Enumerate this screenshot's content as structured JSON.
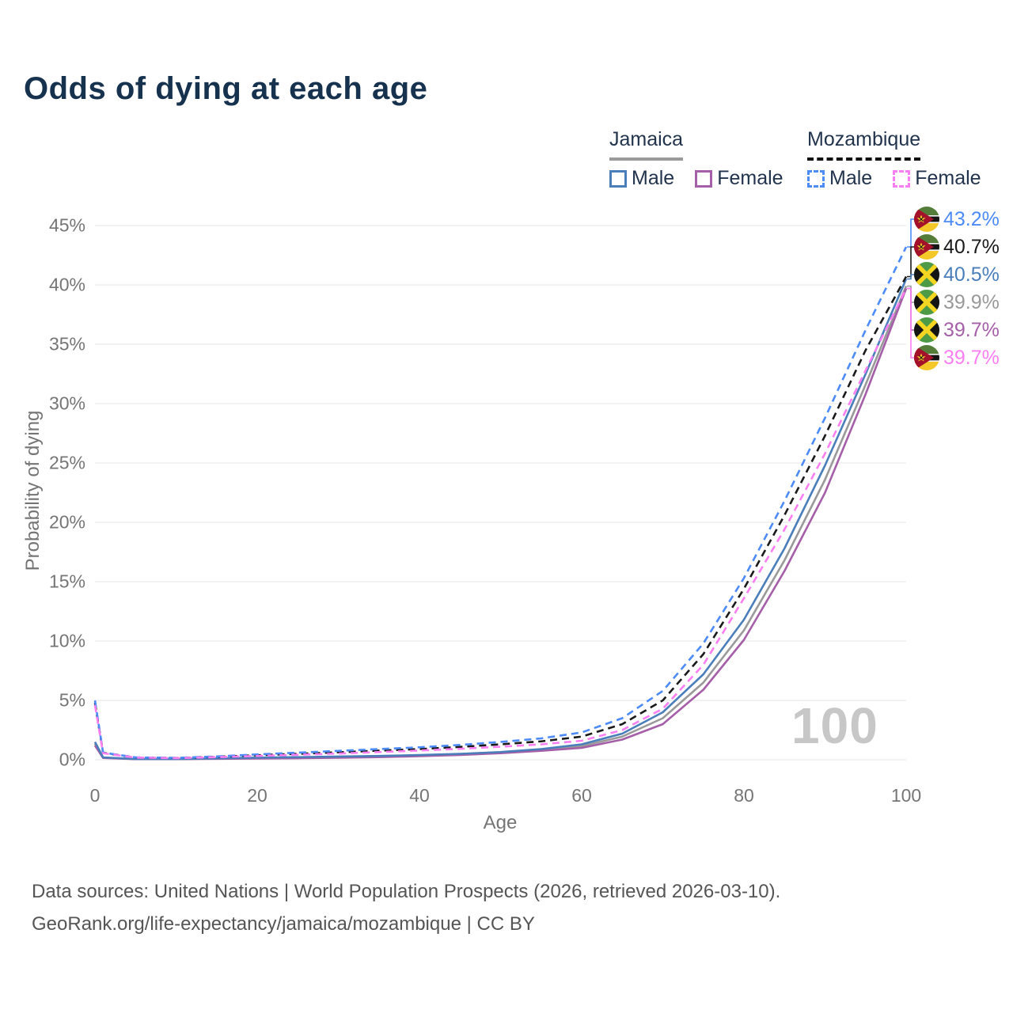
{
  "header": {
    "title": "Odds of dying at each age"
  },
  "legend": {
    "jamaica": {
      "title": "Jamaica",
      "male_label": "Male",
      "female_label": "Female"
    },
    "mozambique": {
      "title": "Mozambique",
      "male_label": "Male",
      "female_label": "Female"
    }
  },
  "watermark": "100",
  "footer": {
    "line1": "Data sources: United Nations | World Population Prospects (2026, retrieved 2026-03-10).",
    "line2": "GeoRank.org/life-expectancy/jamaica/mozambique | CC BY"
  },
  "chart_data": {
    "type": "line",
    "title": "Odds of dying at each age",
    "xlabel": "Age",
    "ylabel": "Probability of dying",
    "xlim": [
      0,
      100
    ],
    "ylim_percent": [
      0,
      45
    ],
    "x_ticks": [
      0,
      20,
      40,
      60,
      80,
      100
    ],
    "y_ticks_percent": [
      0,
      5,
      10,
      15,
      20,
      25,
      30,
      35,
      40,
      45
    ],
    "y_tick_labels": [
      "0%",
      "5%",
      "10%",
      "15%",
      "20%",
      "25%",
      "30%",
      "35%",
      "40%",
      "45%"
    ],
    "grid": "horizontal",
    "legend_position": "top-right",
    "ages": [
      0,
      1,
      5,
      10,
      15,
      20,
      25,
      30,
      35,
      40,
      45,
      50,
      55,
      60,
      65,
      70,
      75,
      80,
      85,
      90,
      95,
      100
    ],
    "series": [
      {
        "id": "jam_combined",
        "name": "Jamaica (both sexes)",
        "country": "Jamaica",
        "sex": "combined",
        "color": "#999999",
        "dash": "solid",
        "values": [
          1.35,
          0.18,
          0.055,
          0.055,
          0.1,
          0.14,
          0.18,
          0.22,
          0.27,
          0.35,
          0.45,
          0.6,
          0.82,
          1.15,
          1.95,
          3.5,
          6.5,
          10.9,
          16.8,
          23.6,
          31.6,
          39.9
        ]
      },
      {
        "id": "jam_female",
        "name": "Jamaica Female",
        "country": "Jamaica",
        "sex": "female",
        "color": "#a55fa8",
        "dash": "solid",
        "values": [
          1.2,
          0.15,
          0.05,
          0.05,
          0.08,
          0.1,
          0.13,
          0.17,
          0.22,
          0.3,
          0.4,
          0.55,
          0.75,
          1.0,
          1.7,
          3.0,
          5.9,
          10.1,
          15.9,
          22.5,
          30.8,
          39.7
        ]
      },
      {
        "id": "jam_male",
        "name": "Jamaica Male",
        "country": "Jamaica",
        "sex": "male",
        "color": "#4a7ebb",
        "dash": "solid",
        "values": [
          1.5,
          0.2,
          0.06,
          0.06,
          0.12,
          0.18,
          0.22,
          0.27,
          0.32,
          0.4,
          0.5,
          0.65,
          0.9,
          1.3,
          2.2,
          4.0,
          7.2,
          11.8,
          17.8,
          24.8,
          32.5,
          40.5
        ]
      },
      {
        "id": "moz_combined",
        "name": "Mozambique (both sexes)",
        "country": "Mozambique",
        "sex": "combined",
        "color": "#1a1a1a",
        "dash": "dashed",
        "values": [
          4.8,
          0.58,
          0.19,
          0.15,
          0.25,
          0.38,
          0.5,
          0.63,
          0.77,
          0.9,
          1.08,
          1.3,
          1.55,
          1.95,
          3.0,
          5.0,
          8.9,
          14.4,
          20.6,
          27.3,
          34.5,
          40.7
        ]
      },
      {
        "id": "moz_male",
        "name": "Mozambique Male",
        "country": "Mozambique",
        "sex": "male",
        "color": "#4d8bf8",
        "dash": "dashed",
        "values": [
          5.0,
          0.6,
          0.2,
          0.16,
          0.28,
          0.45,
          0.6,
          0.75,
          0.9,
          1.05,
          1.25,
          1.5,
          1.8,
          2.3,
          3.5,
          5.8,
          9.8,
          15.3,
          21.8,
          28.8,
          36.2,
          43.2
        ]
      },
      {
        "id": "moz_female",
        "name": "Mozambique Female",
        "country": "Mozambique",
        "sex": "female",
        "color": "#fb7ff2",
        "dash": "dashed",
        "values": [
          4.6,
          0.55,
          0.18,
          0.14,
          0.22,
          0.32,
          0.42,
          0.52,
          0.65,
          0.78,
          0.92,
          1.1,
          1.3,
          1.6,
          2.5,
          4.3,
          8.0,
          13.6,
          19.4,
          25.8,
          32.8,
          39.7
        ]
      }
    ],
    "end_labels": [
      {
        "series_id": "moz_male",
        "flag": "mozambique",
        "value": "43.2%",
        "color": "#4d8bf8"
      },
      {
        "series_id": "moz_combined",
        "flag": "mozambique",
        "value": "40.7%",
        "color": "#1a1a1a"
      },
      {
        "series_id": "jam_male",
        "flag": "jamaica",
        "value": "40.5%",
        "color": "#4a7ebb"
      },
      {
        "series_id": "jam_combined",
        "flag": "jamaica",
        "value": "39.9%",
        "color": "#999999"
      },
      {
        "series_id": "jam_female",
        "flag": "jamaica",
        "value": "39.7%",
        "color": "#a55fa8"
      },
      {
        "series_id": "moz_female",
        "flag": "mozambique",
        "value": "39.7%",
        "color": "#fb7ff2"
      }
    ],
    "flag_colors": {
      "jamaica": {
        "green": "#4e9b47",
        "black": "#141414",
        "gold": "#f4d522"
      },
      "mozambique": {
        "green": "#557d3a",
        "black": "#141414",
        "yellow": "#f4c828",
        "red": "#a3112a",
        "white": "#f2f2f2",
        "star": "#f4c828"
      }
    },
    "gridline_color": "#ebebeb"
  }
}
